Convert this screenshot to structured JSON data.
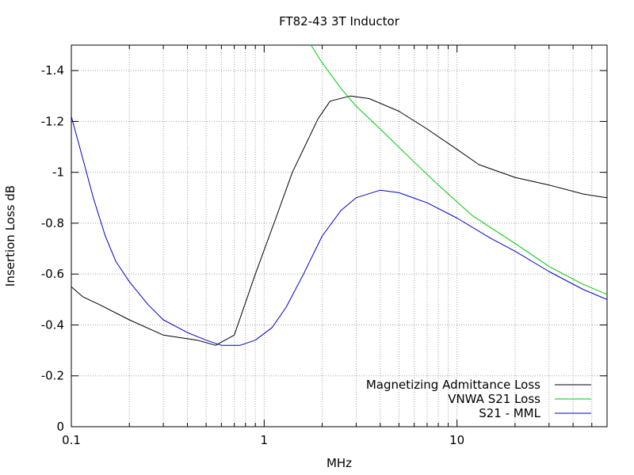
{
  "chart_data": {
    "type": "line",
    "title": "FT82-43 3T Inductor",
    "xlabel": "MHz",
    "ylabel": "Insertion Loss dB",
    "xscale": "log",
    "xlim": [
      0.1,
      60
    ],
    "ylim": [
      0,
      -1.5
    ],
    "x_tick_labels": [
      "0.1",
      "1",
      "10"
    ],
    "y_tick_labels": [
      "0",
      "-0.2",
      "-0.4",
      "-0.6",
      "-0.8",
      "-1",
      "-1.2",
      "-1.4"
    ],
    "grid": true,
    "legend_position": "bottom-right",
    "series": [
      {
        "name": "Magnetizing Admittance Loss",
        "color": "#000000",
        "points": [
          [
            0.1,
            -0.55
          ],
          [
            0.115,
            -0.51
          ],
          [
            0.14,
            -0.48
          ],
          [
            0.2,
            -0.42
          ],
          [
            0.3,
            -0.36
          ],
          [
            0.45,
            -0.34
          ],
          [
            0.56,
            -0.32
          ],
          [
            0.7,
            -0.36
          ],
          [
            0.9,
            -0.6
          ],
          [
            1.15,
            -0.82
          ],
          [
            1.4,
            -1.0
          ],
          [
            1.9,
            -1.21
          ],
          [
            2.2,
            -1.28
          ],
          [
            2.8,
            -1.3
          ],
          [
            3.5,
            -1.29
          ],
          [
            5,
            -1.24
          ],
          [
            7,
            -1.17
          ],
          [
            10,
            -1.09
          ],
          [
            13,
            -1.03
          ],
          [
            20,
            -0.98
          ],
          [
            30,
            -0.95
          ],
          [
            45,
            -0.915
          ],
          [
            60,
            -0.9
          ]
        ]
      },
      {
        "name": "VNWA S21 Loss",
        "color": "#00c800",
        "points": [
          [
            1.75,
            -1.5
          ],
          [
            2.0,
            -1.43
          ],
          [
            2.5,
            -1.33
          ],
          [
            3,
            -1.26
          ],
          [
            4,
            -1.17
          ],
          [
            6,
            -1.04
          ],
          [
            8,
            -0.95
          ],
          [
            12,
            -0.83
          ],
          [
            20,
            -0.72
          ],
          [
            30,
            -0.63
          ],
          [
            45,
            -0.56
          ],
          [
            60,
            -0.52
          ]
        ]
      },
      {
        "name": "S21 - MML",
        "color": "#0000c8",
        "points": [
          [
            0.1,
            -1.22
          ],
          [
            0.115,
            -1.05
          ],
          [
            0.13,
            -0.9
          ],
          [
            0.15,
            -0.75
          ],
          [
            0.17,
            -0.65
          ],
          [
            0.2,
            -0.57
          ],
          [
            0.25,
            -0.48
          ],
          [
            0.3,
            -0.42
          ],
          [
            0.4,
            -0.37
          ],
          [
            0.5,
            -0.34
          ],
          [
            0.6,
            -0.32
          ],
          [
            0.75,
            -0.32
          ],
          [
            0.9,
            -0.34
          ],
          [
            1.1,
            -0.39
          ],
          [
            1.3,
            -0.47
          ],
          [
            1.6,
            -0.6
          ],
          [
            2.0,
            -0.75
          ],
          [
            2.5,
            -0.85
          ],
          [
            3,
            -0.9
          ],
          [
            4,
            -0.93
          ],
          [
            5,
            -0.92
          ],
          [
            7,
            -0.88
          ],
          [
            10,
            -0.82
          ],
          [
            15,
            -0.74
          ],
          [
            20,
            -0.69
          ],
          [
            30,
            -0.61
          ],
          [
            45,
            -0.54
          ],
          [
            60,
            -0.5
          ]
        ]
      }
    ]
  }
}
